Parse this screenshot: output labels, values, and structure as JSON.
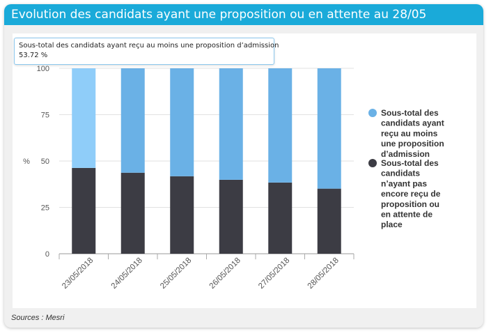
{
  "header": {
    "title": "Evolution des candidats ayant une proposition ou en attente au 28/05"
  },
  "footer": {
    "sources": "Sources : Mesri"
  },
  "tooltip": {
    "label": "Sous-total des candidats ayant reçu au moins une proposition d’admission",
    "value": "53.72 %"
  },
  "colors": {
    "series1": "#6ab1e6",
    "series1_hover": "#8fcdf9",
    "series2": "#3c3c44",
    "header": "#1aaad9"
  },
  "chart_data": {
    "type": "bar",
    "stacked": true,
    "categories": [
      "23/05/2018",
      "24/05/2018",
      "25/05/2018",
      "26/05/2018",
      "27/05/2018",
      "28/05/2018"
    ],
    "series": [
      {
        "name": "Sous-total des candidats ayant reçu au moins une proposition d’admission",
        "values": [
          53.72,
          56.3,
          58.2,
          60.1,
          61.6,
          64.9
        ]
      },
      {
        "name": "Sous-total des candidats n’ayant pas encore reçu de proposition ou en attente de place",
        "values": [
          46.28,
          43.7,
          41.8,
          39.9,
          38.4,
          35.1
        ]
      }
    ],
    "ylabel": "%",
    "yticks": [
      0,
      25,
      50,
      75,
      100
    ],
    "ylim": [
      0,
      100
    ],
    "highlighted_index": 0,
    "legend": {
      "position": "right",
      "items": [
        {
          "lines": [
            "Sous-total des",
            "candidats ayant",
            "reçu au moins",
            "une proposition",
            "d’admission"
          ]
        },
        {
          "lines": [
            "Sous-total des",
            "candidats",
            "n’ayant pas",
            "encore reçu de",
            "proposition ou",
            "en attente de",
            "place"
          ]
        }
      ]
    }
  }
}
